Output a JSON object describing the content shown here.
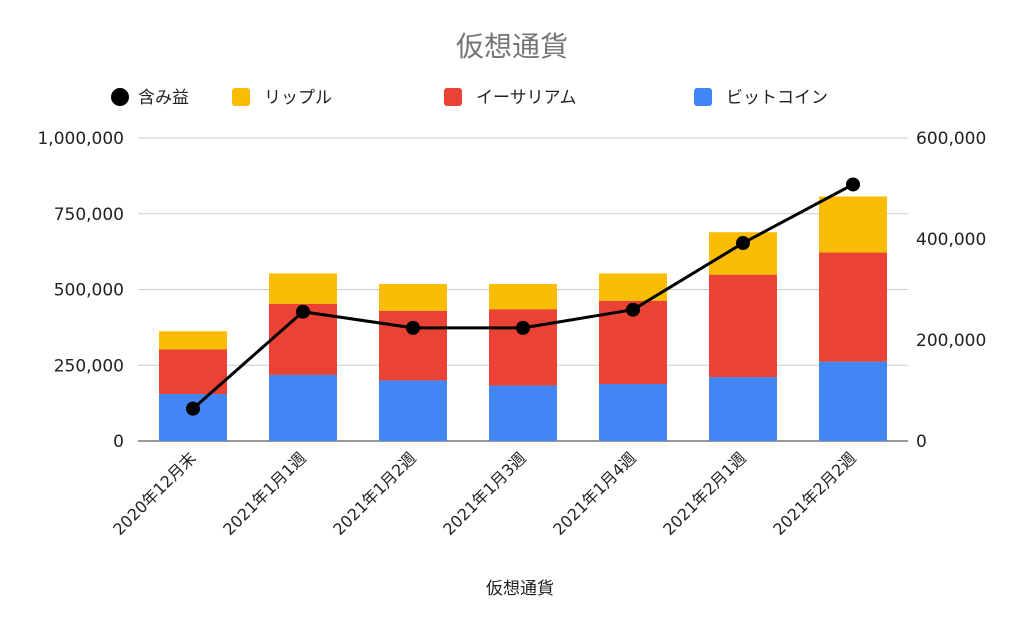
{
  "chart_data": {
    "type": "bar",
    "stacked": true,
    "title": "仮想通貨",
    "xlabel": "仮想通貨",
    "ylabel": "",
    "y2label": "",
    "categories": [
      "2020年12月末",
      "2021年1月1週",
      "2021年1月2週",
      "2021年1月3週",
      "2021年1月4週",
      "2021年2月1週",
      "2021年2月2週"
    ],
    "ylim": [
      0,
      1000000
    ],
    "y_ticks": [
      "0",
      "250,000",
      "500,000",
      "750,000",
      "1,000,000"
    ],
    "y2lim": [
      0,
      600000
    ],
    "y2_ticks": [
      "0",
      "200,000",
      "400,000",
      "600,000"
    ],
    "grid": true,
    "legend_position": "top",
    "legend": [
      "含み益",
      "リップル",
      "イーサリアム",
      "ビットコイン"
    ],
    "series": [
      {
        "name": "ビットコイン",
        "type": "bar",
        "axis": "left",
        "color": "#4285F4",
        "values": [
          155000,
          218000,
          200000,
          183000,
          188000,
          211000,
          262000
        ]
      },
      {
        "name": "イーサリアム",
        "type": "bar",
        "axis": "left",
        "color": "#EA4335",
        "values": [
          147000,
          235000,
          230000,
          252000,
          275000,
          338000,
          360000
        ]
      },
      {
        "name": "リップル",
        "type": "bar",
        "axis": "left",
        "color": "#FBBC04",
        "values": [
          60000,
          100000,
          88000,
          83000,
          90000,
          140000,
          185000
        ]
      },
      {
        "name": "含み益",
        "type": "line",
        "axis": "right",
        "color": "#000000",
        "values": [
          64000,
          256000,
          224000,
          224000,
          260000,
          392000,
          508000
        ]
      }
    ]
  }
}
